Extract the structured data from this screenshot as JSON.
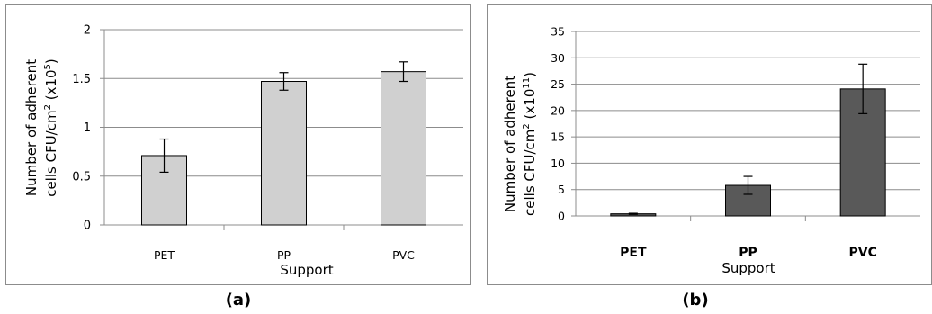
{
  "chart_data": [
    {
      "type": "bar",
      "panel_label": "(a)",
      "categories": [
        "PET",
        "PP",
        "PVC"
      ],
      "values": [
        0.71,
        1.47,
        1.57
      ],
      "errors": [
        0.17,
        0.09,
        0.1
      ],
      "xlabel": "Support",
      "ylabel_line1": "Number of adherent",
      "ylabel_line2_prefix": "cells CFU/cm",
      "ylabel_sq": "2",
      "ylabel_mid": " (x10",
      "ylabel_exp": "5",
      "ylabel_end": ")",
      "ylim": [
        0,
        2
      ],
      "yticks": [
        "0",
        "0.5",
        "1",
        "1.5",
        "2"
      ],
      "grid": true,
      "bar_color": "#d0d0d0"
    },
    {
      "type": "bar",
      "panel_label": "(b)",
      "categories": [
        "PET",
        "PP",
        "PVC"
      ],
      "values": [
        0.4,
        5.8,
        24.1
      ],
      "errors": [
        0.1,
        1.7,
        4.7
      ],
      "xlabel": "Support",
      "ylabel_line1": "Number of adherent",
      "ylabel_line2_prefix": "cells CFU/cm",
      "ylabel_sq": "2",
      "ylabel_mid": " (x10",
      "ylabel_exp": "11",
      "ylabel_end": ")",
      "ylim": [
        0,
        35
      ],
      "yticks": [
        "0",
        "5",
        "10",
        "15",
        "20",
        "25",
        "30",
        "35"
      ],
      "grid": true,
      "bar_color": "#595959"
    }
  ]
}
